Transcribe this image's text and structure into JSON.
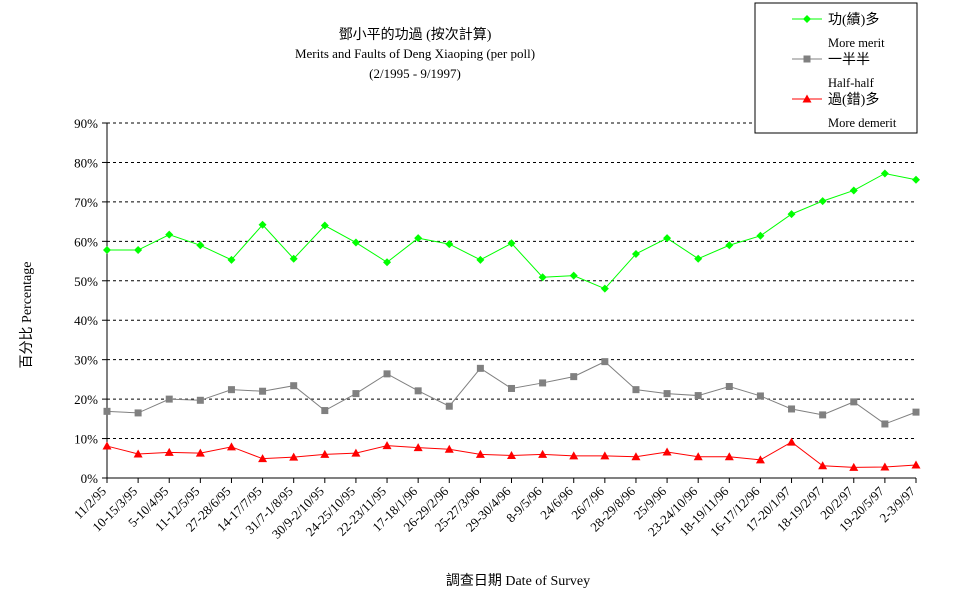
{
  "chart_data": {
    "type": "line",
    "title_lines": [
      "鄧小平的功過 (按次計算)",
      "Merits and Faults of Deng Xiaoping  (per poll)",
      "(2/1995 - 9/1997)"
    ],
    "xlabel": "調查日期 Date of Survey",
    "ylabel": "百分比 Percentage",
    "ylim": [
      0,
      90
    ],
    "y_ticks": [
      "0%",
      "10%",
      "20%",
      "30%",
      "40%",
      "50%",
      "60%",
      "70%",
      "80%",
      "90%"
    ],
    "grid": true,
    "legend_position": "top-right",
    "categories": [
      "11/2/95",
      "10-15/3/95",
      "5-10/4/95",
      "11-12/5/95",
      "27-28/6/95",
      "14-17/7/95",
      "31/7-1/8/95",
      "30/9-2/10/95",
      "24-25/10/95",
      "22-23/11/95",
      "17-18/1/96",
      "26-29/2/96",
      "25-27/3/96",
      "29-30/4/96",
      "8-9/5/96",
      "24/6/96",
      "26/7/96",
      "28-29/8/96",
      "25/9/96",
      "23-24/10/96",
      "18-19/11/96",
      "16-17/12/96",
      "17-20/1/97",
      "18-19/2/97",
      "20/2/97",
      "19-20/5/97",
      "2-3/9/97"
    ],
    "series": [
      {
        "name": "功(績)多",
        "name_en": "More merit",
        "color": "#00ff00",
        "marker": "diamond",
        "values": [
          57.8,
          57.8,
          61.7,
          59.0,
          55.3,
          64.2,
          55.6,
          64.0,
          59.7,
          54.7,
          60.8,
          59.3,
          55.3,
          59.5,
          50.9,
          51.3,
          48.0,
          56.8,
          60.8,
          55.6,
          59.0,
          61.4,
          66.9,
          70.2,
          72.9,
          77.2,
          75.6
        ]
      },
      {
        "name": "一半半",
        "name_en": "Half-half",
        "color": "#808080",
        "marker": "square",
        "values": [
          16.9,
          16.5,
          20.0,
          19.7,
          22.4,
          22.0,
          23.4,
          17.1,
          21.4,
          26.4,
          22.1,
          18.2,
          27.8,
          22.7,
          24.1,
          25.7,
          29.5,
          22.4,
          21.4,
          20.9,
          23.2,
          20.8,
          17.5,
          16.0,
          19.3,
          13.7,
          16.7
        ]
      },
      {
        "name": "過(錯)多",
        "name_en": "More demerit",
        "color": "#ff0000",
        "marker": "triangle",
        "values": [
          8.1,
          6.1,
          6.5,
          6.3,
          7.9,
          4.9,
          5.3,
          6.0,
          6.3,
          8.2,
          7.7,
          7.3,
          6.0,
          5.7,
          6.0,
          5.6,
          5.6,
          5.4,
          6.6,
          5.4,
          5.4,
          4.6,
          9.1,
          3.1,
          2.7,
          2.8,
          3.3
        ]
      }
    ]
  }
}
